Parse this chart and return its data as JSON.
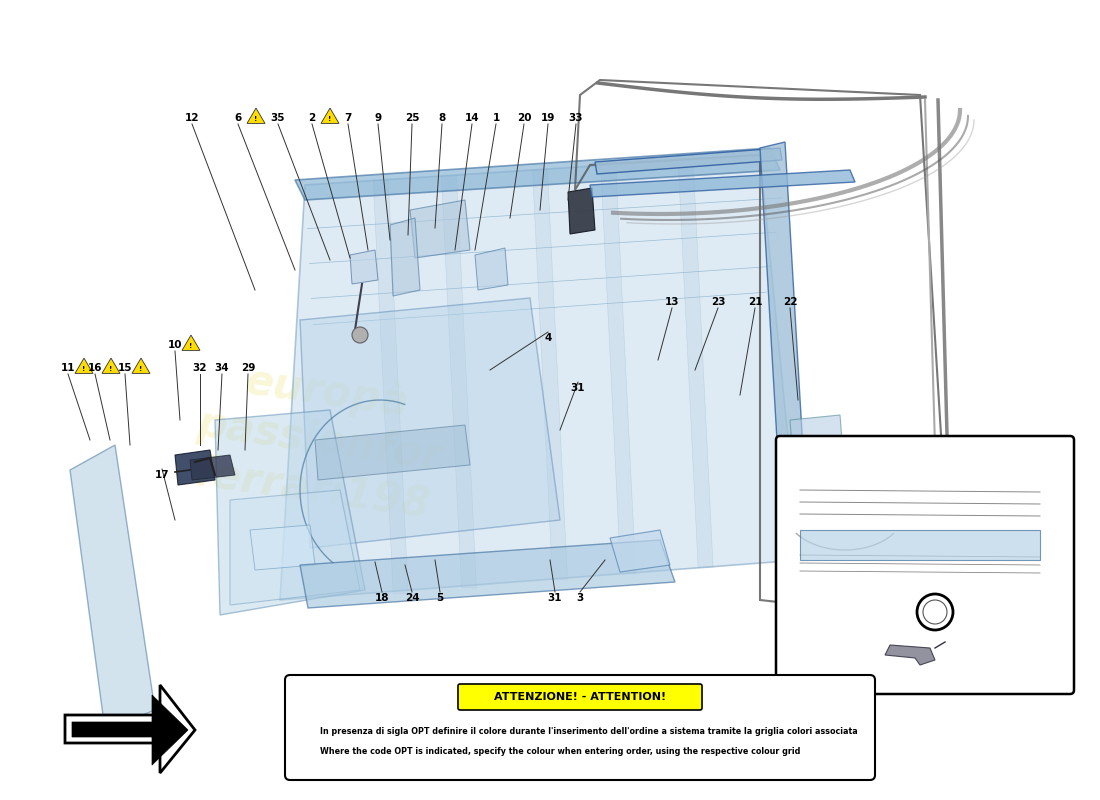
{
  "bg_color": "#ffffff",
  "fig_width": 11.0,
  "fig_height": 8.0,
  "dpi": 100,
  "door_fill": "#c8dff0",
  "door_edge": "#6a9dc0",
  "door_alpha": 0.55,
  "door_edge_alpha": 0.9,
  "warn_yellow": "#ffff00",
  "warn_orange": "#ffcc00",
  "text_color": "#000000",
  "line_color": "#333333",
  "gray_line": "#888888",
  "watermark_color": "#e8e060",
  "watermark_alpha": 0.25,
  "label_fontsize": 7.5,
  "warn_fontsize": 6.8,
  "warning_box": {
    "title": "ATTENZIONE! - ATTENTION!",
    "line1": "In presenza di sigla OPT definire il colore durante l'inserimento dell'ordine a sistema tramite la griglia colori associata",
    "line2": "Where the code OPT is indicated, specify the colour when entering order, using the respective colour grid"
  }
}
